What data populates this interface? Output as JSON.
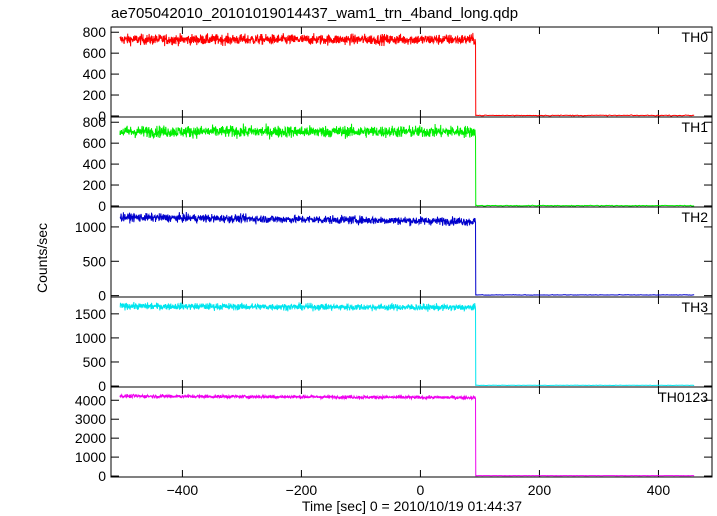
{
  "chart_data": {
    "type": "line",
    "title": "ae705042010_20101019014437_wam1_trn_4band_long.qdp",
    "xlabel": "Time [sec] 0 = 2010/10/19 01:44:37",
    "ylabel": "Counts/sec",
    "xlim": [
      -520,
      490
    ],
    "x_ticks": [
      -400,
      -200,
      0,
      200,
      400
    ],
    "x_tick_labels": [
      "−400",
      "−200",
      "0",
      "200",
      "400"
    ],
    "drop_time": 93,
    "start_time": -505,
    "end_time": 460,
    "panels": [
      {
        "name": "TH0",
        "color": "#ff0000",
        "ylim": [
          -10,
          850
        ],
        "y_ticks": [
          0,
          200,
          400,
          600,
          800
        ],
        "level_before": 730,
        "noise": 25,
        "slope": 0,
        "level_after": 5
      },
      {
        "name": "TH1",
        "color": "#00ee00",
        "ylim": [
          -10,
          850
        ],
        "y_ticks": [
          0,
          200,
          400,
          600,
          800
        ],
        "level_before": 710,
        "noise": 28,
        "slope": 0,
        "level_after": 3
      },
      {
        "name": "TH2",
        "color": "#0000cc",
        "ylim": [
          -20,
          1290
        ],
        "y_ticks": [
          0,
          500,
          1000
        ],
        "level_before": 1140,
        "noise": 30,
        "slope": -60,
        "level_after": 10
      },
      {
        "name": "TH3",
        "color": "#00e5ee",
        "ylim": [
          -20,
          1850
        ],
        "y_ticks": [
          0,
          500,
          1000,
          1500
        ],
        "level_before": 1660,
        "noise": 35,
        "slope": -30,
        "level_after": 15
      },
      {
        "name": "TH0123",
        "color": "#ee00ee",
        "ylim": [
          -50,
          4700
        ],
        "y_ticks": [
          0,
          1000,
          2000,
          3000,
          4000
        ],
        "level_before": 4220,
        "noise": 45,
        "slope": -80,
        "level_after": 20
      }
    ]
  }
}
